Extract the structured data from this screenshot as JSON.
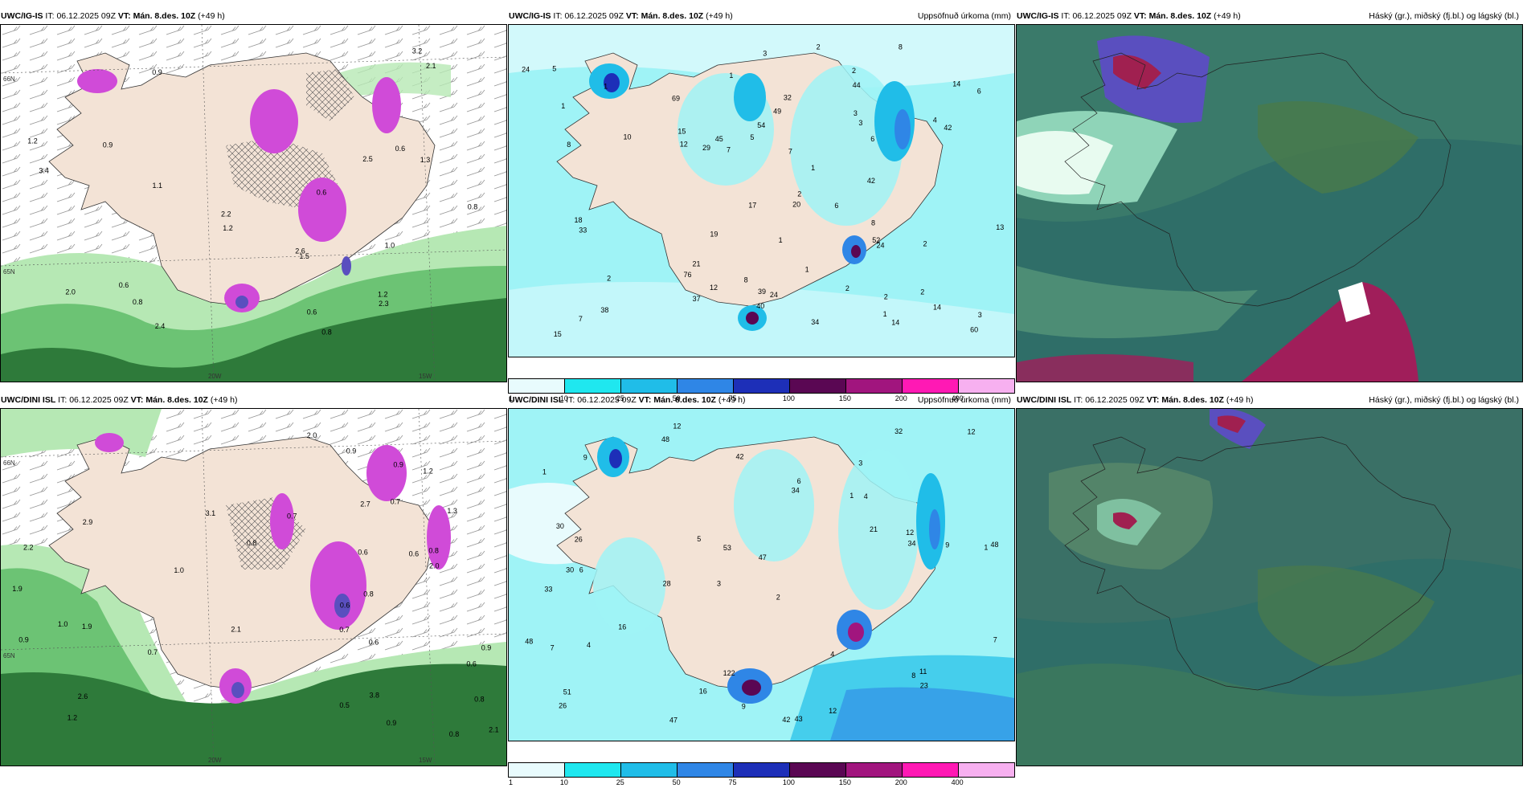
{
  "panels": {
    "ig_cloud": {
      "model": "UWC/IG-IS",
      "it_label": "IT:",
      "it_value": "06.12.2025 09Z",
      "vt_label": "VT:",
      "vt_value": "Mán. 8.des. 10Z",
      "lead": "(+49 h)",
      "numbers": [
        "0.8",
        "0.9",
        "0.6",
        "0.9",
        "0.6",
        "0.6",
        "0.8",
        "1.1",
        "1.2",
        "0.8",
        "2.0",
        "1.2",
        "2.2",
        "2.6",
        "2.5",
        "3.2",
        "3.4",
        "2.1",
        "1.0",
        "1.3",
        "1.2",
        "1.5",
        "2.4",
        "2.3",
        "0.6"
      ],
      "lon_ticks": [
        "20W",
        "15W"
      ],
      "lat_ticks": [
        "66N",
        "65N"
      ]
    },
    "ig_precip": {
      "model": "UWC/IG-IS",
      "it_label": "IT:",
      "it_value": "06.12.2025 09Z",
      "vt_label": "VT:",
      "vt_value": "Mán. 8.des. 10Z",
      "lead": "(+49 h)",
      "title": "Uppsöfnuð úrkoma (mm)",
      "numbers": [
        "7",
        "2",
        "2",
        "1",
        "1",
        "2",
        "2",
        "2",
        "2",
        "76",
        "60",
        "12",
        "12",
        "3",
        "2",
        "15",
        "52",
        "33",
        "17",
        "6",
        "24",
        "38",
        "40",
        "6",
        "24",
        "44",
        "45",
        "49",
        "42",
        "1",
        "14",
        "19",
        "32",
        "15",
        "20",
        "34",
        "39",
        "6",
        "8",
        "8",
        "10",
        "21",
        "69",
        "37",
        "42",
        "29",
        "54",
        "24",
        "13",
        "3",
        "1",
        "5",
        "5",
        "1",
        "2",
        "1",
        "4",
        "7",
        "1",
        "8",
        "7",
        "3",
        "3",
        "14",
        "14",
        "18",
        "8"
      ]
    },
    "ig_layers": {
      "model": "UWC/IG-IS",
      "it_label": "IT:",
      "it_value": "06.12.2025 09Z",
      "vt_label": "VT:",
      "vt_value": "Mán. 8.des. 10Z",
      "lead": "(+49 h)",
      "title": "Háský (gr.), miðský (fj.bl.) og lágský (bl.)"
    },
    "dini_cloud": {
      "model": "UWC/DINI ISL",
      "it_label": "IT:",
      "it_value": "06.12.2025 09Z",
      "vt_label": "VT:",
      "vt_value": "Mán. 8.des. 10Z",
      "lead": "(+49 h)",
      "numbers": [
        "0.7",
        "0.9",
        "0.6",
        "0.6",
        "0.5",
        "0.7",
        "0.8",
        "0.8",
        "0.8",
        "0.9",
        "0.8",
        "0.6",
        "0.9",
        "0.6",
        "0.7",
        "0.8",
        "1.2",
        "1.0",
        "0.9",
        "3.1",
        "2.1",
        "1.9",
        "0.6",
        "0.9",
        "2.0",
        "2.6",
        "2.9",
        "2.7",
        "2.1",
        "1.9",
        "1.3",
        "2.0",
        "2.2",
        "3.8",
        "1.0",
        "1.2",
        "0.7"
      ],
      "lon_ticks": [
        "20W",
        "15W"
      ],
      "lat_ticks": [
        "66N",
        "65N"
      ]
    },
    "dini_precip": {
      "model": "UWC/DINI ISL",
      "it_label": "IT:",
      "it_value": "06.12.2025 09Z",
      "vt_label": "VT:",
      "vt_value": "Mán. 8.des. 10Z",
      "lead": "(+49 h)",
      "title": "Uppsöfnuð úrkoma (mm)",
      "numbers": [
        "12",
        "3",
        "1",
        "3",
        "2",
        "6",
        "1",
        "1",
        "33",
        "34",
        "47",
        "26",
        "48",
        "28",
        "42",
        "43",
        "122",
        "32",
        "21",
        "16",
        "26",
        "30",
        "48",
        "9",
        "48",
        "30",
        "53",
        "34",
        "11",
        "7",
        "8",
        "6",
        "4",
        "5",
        "4",
        "7",
        "12",
        "16",
        "12",
        "42",
        "51",
        "47",
        "12",
        "9",
        "9",
        "4",
        "23"
      ]
    },
    "dini_layers": {
      "model": "UWC/DINI ISL",
      "it_label": "IT:",
      "it_value": "06.12.2025 09Z",
      "vt_label": "VT:",
      "vt_value": "Mán. 8.des. 10Z",
      "lead": "(+49 h)",
      "title": "Háský (gr.), miðský (fj.bl.) og lágský (bl.)"
    }
  },
  "colorbar": {
    "ticks": [
      "1",
      "10",
      "25",
      "50",
      "75",
      "100",
      "150",
      "200",
      "400"
    ],
    "colors": [
      "#e8fbfd",
      "#1fe7ef",
      "#20bde8",
      "#2f86e6",
      "#1d2fb8",
      "#5a0753",
      "#a1157e",
      "#ff19b4",
      "#f7b0f0"
    ]
  },
  "colors": {
    "land": "#f3e3d6",
    "precip_bg": "#9ff3f6",
    "precip_light": "#c7f9f9",
    "layers_bg": "#2f6e68",
    "green_low": "#b6e8b4",
    "green_dark": "#2e7a3a",
    "magenta": "#d04bd8",
    "violet": "#5a4fbf"
  }
}
